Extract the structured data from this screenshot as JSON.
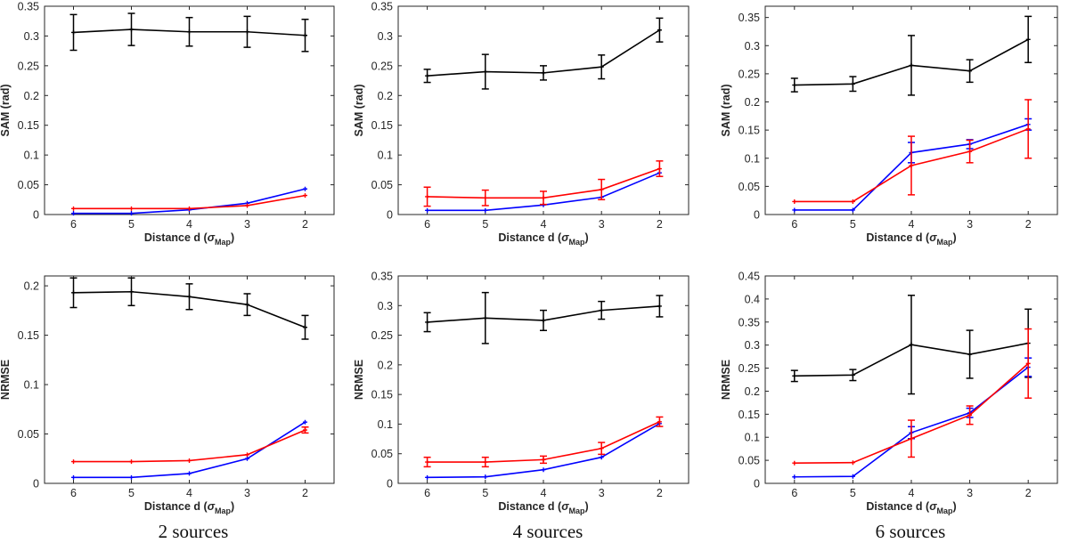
{
  "chart_data": [
    {
      "type": "line",
      "title": "",
      "xlabel_main": "Distance d (",
      "xlabel_sym": "σ",
      "xlabel_sub": "Map",
      "xlabel_end": ")",
      "ylabel": "SAM (rad)",
      "x": [
        6,
        5,
        4,
        3,
        2
      ],
      "ylim": [
        0,
        0.35
      ],
      "yticks": [
        0,
        0.05,
        0.1,
        0.15,
        0.2,
        0.25,
        0.3,
        0.35
      ],
      "ytick_labels": [
        "0",
        "0.05",
        "0.1",
        "0.15",
        "0.2",
        "0.25",
        "0.3",
        "0.35"
      ],
      "series": [
        {
          "name": "black",
          "color": "#000000",
          "values": [
            0.306,
            0.311,
            0.307,
            0.307,
            0.301
          ],
          "errors": [
            0.03,
            0.027,
            0.024,
            0.026,
            0.027
          ]
        },
        {
          "name": "blue",
          "color": "#0000ff",
          "values": [
            0.002,
            0.002,
            0.008,
            0.019,
            0.043
          ],
          "errors": [
            0,
            0,
            0,
            0,
            0
          ]
        },
        {
          "name": "red",
          "color": "#ff0000",
          "values": [
            0.01,
            0.01,
            0.01,
            0.015,
            0.032
          ],
          "errors": [
            0,
            0,
            0,
            0,
            0
          ]
        }
      ]
    },
    {
      "type": "line",
      "title": "",
      "xlabel_main": "Distance d (",
      "xlabel_sym": "σ",
      "xlabel_sub": "Map",
      "xlabel_end": ")",
      "ylabel": "SAM (rad)",
      "x": [
        6,
        5,
        4,
        3,
        2
      ],
      "ylim": [
        0,
        0.35
      ],
      "yticks": [
        0,
        0.05,
        0.1,
        0.15,
        0.2,
        0.25,
        0.3,
        0.35
      ],
      "ytick_labels": [
        "0",
        "0.05",
        "0.1",
        "0.15",
        "0.2",
        "0.25",
        "0.3",
        "0.35"
      ],
      "series": [
        {
          "name": "black",
          "color": "#000000",
          "values": [
            0.233,
            0.24,
            0.238,
            0.248,
            0.31
          ],
          "errors": [
            0.011,
            0.029,
            0.012,
            0.02,
            0.02
          ]
        },
        {
          "name": "blue",
          "color": "#0000ff",
          "values": [
            0.007,
            0.007,
            0.016,
            0.029,
            0.07
          ],
          "errors": [
            0,
            0,
            0,
            0,
            0
          ]
        },
        {
          "name": "red",
          "color": "#ff0000",
          "values": [
            0.03,
            0.028,
            0.028,
            0.042,
            0.077
          ],
          "errors": [
            0.016,
            0.013,
            0.011,
            0.017,
            0.013
          ]
        }
      ]
    },
    {
      "type": "line",
      "title": "",
      "xlabel_main": "Distance d (",
      "xlabel_sym": "σ",
      "xlabel_sub": "Map",
      "xlabel_end": ")",
      "ylabel": "SAM (rad)",
      "x": [
        6,
        5,
        4,
        3,
        2
      ],
      "ylim": [
        0,
        0.37
      ],
      "yticks": [
        0,
        0.05,
        0.1,
        0.15,
        0.2,
        0.25,
        0.3,
        0.35
      ],
      "ytick_labels": [
        "0",
        "0.05",
        "0.1",
        "0.15",
        "0.2",
        "0.25",
        "0.3",
        "0.35"
      ],
      "series": [
        {
          "name": "black",
          "color": "#000000",
          "values": [
            0.23,
            0.232,
            0.265,
            0.255,
            0.311
          ],
          "errors": [
            0.012,
            0.013,
            0.053,
            0.02,
            0.041
          ]
        },
        {
          "name": "blue",
          "color": "#0000ff",
          "values": [
            0.008,
            0.008,
            0.11,
            0.125,
            0.16
          ],
          "errors": [
            0,
            0,
            0.018,
            0.008,
            0.01
          ]
        },
        {
          "name": "red",
          "color": "#ff0000",
          "values": [
            0.023,
            0.023,
            0.087,
            0.112,
            0.152
          ],
          "errors": [
            0,
            0,
            0.052,
            0.02,
            0.052
          ]
        }
      ]
    },
    {
      "type": "line",
      "title": "",
      "xlabel_main": "Distance d (",
      "xlabel_sym": "σ",
      "xlabel_sub": "Map",
      "xlabel_end": ")",
      "ylabel": "NRMSE",
      "x": [
        6,
        5,
        4,
        3,
        2
      ],
      "ylim": [
        0,
        0.21
      ],
      "yticks": [
        0,
        0.05,
        0.1,
        0.15,
        0.2
      ],
      "ytick_labels": [
        "0",
        "0.05",
        "0.1",
        "0.15",
        "0.2"
      ],
      "series": [
        {
          "name": "black",
          "color": "#000000",
          "values": [
            0.193,
            0.194,
            0.189,
            0.181,
            0.158
          ],
          "errors": [
            0.015,
            0.014,
            0.013,
            0.011,
            0.012
          ]
        },
        {
          "name": "blue",
          "color": "#0000ff",
          "values": [
            0.006,
            0.006,
            0.01,
            0.025,
            0.062
          ],
          "errors": [
            0,
            0,
            0,
            0,
            0
          ]
        },
        {
          "name": "red",
          "color": "#ff0000",
          "values": [
            0.022,
            0.022,
            0.023,
            0.029,
            0.054
          ],
          "errors": [
            0,
            0,
            0,
            0,
            0.003
          ]
        }
      ]
    },
    {
      "type": "line",
      "title": "",
      "xlabel_main": "Distance d (",
      "xlabel_sym": "σ",
      "xlabel_sub": "Map",
      "xlabel_end": ")",
      "ylabel": "NRMSE",
      "x": [
        6,
        5,
        4,
        3,
        2
      ],
      "ylim": [
        0,
        0.35
      ],
      "yticks": [
        0,
        0.05,
        0.1,
        0.15,
        0.2,
        0.25,
        0.3,
        0.35
      ],
      "ytick_labels": [
        "0",
        "0.05",
        "0.1",
        "0.15",
        "0.2",
        "0.25",
        "0.3",
        "0.35"
      ],
      "series": [
        {
          "name": "black",
          "color": "#000000",
          "values": [
            0.272,
            0.279,
            0.275,
            0.292,
            0.299
          ],
          "errors": [
            0.016,
            0.043,
            0.017,
            0.015,
            0.018
          ]
        },
        {
          "name": "blue",
          "color": "#0000ff",
          "values": [
            0.01,
            0.011,
            0.023,
            0.044,
            0.101
          ],
          "errors": [
            0,
            0,
            0,
            0,
            0
          ]
        },
        {
          "name": "red",
          "color": "#ff0000",
          "values": [
            0.036,
            0.036,
            0.04,
            0.059,
            0.104
          ],
          "errors": [
            0.008,
            0.008,
            0.006,
            0.01,
            0.008
          ]
        }
      ]
    },
    {
      "type": "line",
      "title": "",
      "xlabel_main": "Distance d (",
      "xlabel_sym": "σ",
      "xlabel_sub": "Map",
      "xlabel_end": ")",
      "ylabel": "NRMSE",
      "x": [
        6,
        5,
        4,
        3,
        2
      ],
      "ylim": [
        0,
        0.45
      ],
      "yticks": [
        0,
        0.05,
        0.1,
        0.15,
        0.2,
        0.25,
        0.3,
        0.35,
        0.4,
        0.45
      ],
      "ytick_labels": [
        "0",
        "0.05",
        "0.1",
        "0.15",
        "0.2",
        "0.25",
        "0.3",
        "0.35",
        "0.4",
        "0.45"
      ],
      "series": [
        {
          "name": "black",
          "color": "#000000",
          "values": [
            0.233,
            0.235,
            0.301,
            0.28,
            0.304
          ],
          "errors": [
            0.012,
            0.012,
            0.107,
            0.052,
            0.074
          ]
        },
        {
          "name": "blue",
          "color": "#0000ff",
          "values": [
            0.014,
            0.015,
            0.11,
            0.153,
            0.252
          ],
          "errors": [
            0,
            0,
            0.013,
            0.01,
            0.02
          ]
        },
        {
          "name": "red",
          "color": "#ff0000",
          "values": [
            0.044,
            0.045,
            0.097,
            0.148,
            0.26
          ],
          "errors": [
            0,
            0,
            0.04,
            0.02,
            0.075
          ]
        }
      ]
    }
  ],
  "captions": [
    "2 sources",
    "4 sources",
    "6 sources"
  ]
}
